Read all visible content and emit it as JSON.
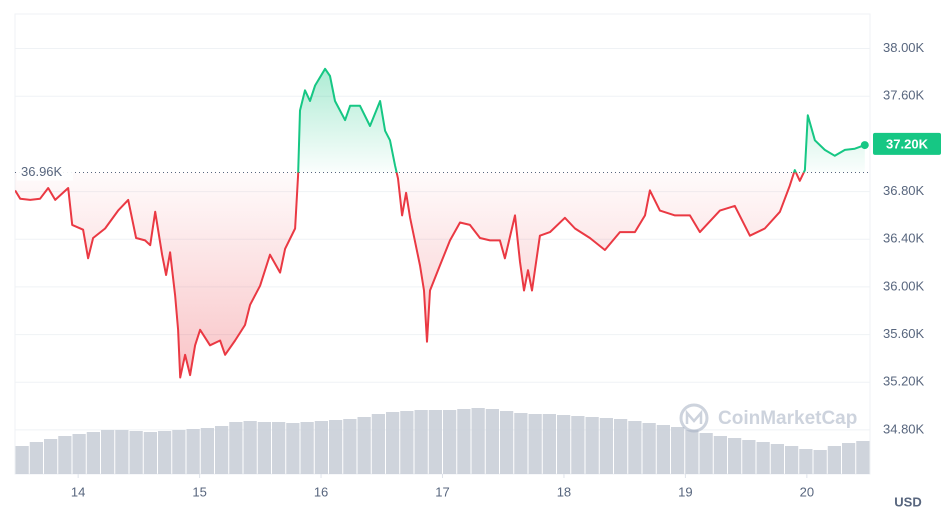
{
  "chart_data": {
    "type": "line",
    "x": [
      13.481,
      13.523,
      13.605,
      13.687,
      13.753,
      13.811,
      13.918,
      13.951,
      14.041,
      14.082,
      14.123,
      14.222,
      14.329,
      14.412,
      14.477,
      14.551,
      14.593,
      14.634,
      14.691,
      14.724,
      14.757,
      14.798,
      14.823,
      14.84,
      14.881,
      14.922,
      14.963,
      15.004,
      15.086,
      15.169,
      15.21,
      15.292,
      15.374,
      15.416,
      15.498,
      15.58,
      15.663,
      15.704,
      15.786,
      15.811,
      15.827,
      15.868,
      15.909,
      15.951,
      16.033,
      16.074,
      16.115,
      16.198,
      16.239,
      16.321,
      16.403,
      16.486,
      16.527,
      16.568,
      16.609,
      16.634,
      16.667,
      16.7,
      16.733,
      16.815,
      16.848,
      16.872,
      16.897,
      16.979,
      17.062,
      17.144,
      17.226,
      17.309,
      17.391,
      17.473,
      17.514,
      17.597,
      17.638,
      17.671,
      17.704,
      17.737,
      17.802,
      17.885,
      18.008,
      18.091,
      18.214,
      18.337,
      18.461,
      18.584,
      18.667,
      18.708,
      18.79,
      18.914,
      19.037,
      19.119,
      19.284,
      19.407,
      19.531,
      19.654,
      19.778,
      19.86,
      19.901,
      19.942,
      19.984,
      20.008,
      20.066,
      20.148,
      20.23,
      20.313,
      20.395,
      20.477
    ],
    "series": [
      {
        "color_up": "#16c784",
        "color_down": "#ea3943",
        "values": [
          36810,
          36740,
          36730,
          36740,
          36830,
          36730,
          36830,
          36520,
          36480,
          36240,
          36410,
          36490,
          36640,
          36730,
          36410,
          36390,
          36350,
          36630,
          36270,
          36100,
          36290,
          35930,
          35640,
          35240,
          35430,
          35260,
          35510,
          35640,
          35510,
          35550,
          35430,
          35550,
          35680,
          35850,
          36010,
          36270,
          36120,
          36320,
          36490,
          36940,
          37480,
          37650,
          37560,
          37690,
          37830,
          37770,
          37560,
          37400,
          37520,
          37520,
          37350,
          37560,
          37310,
          37230,
          37020,
          36910,
          36600,
          36790,
          36580,
          36180,
          35970,
          35540,
          35970,
          36180,
          36390,
          36540,
          36520,
          36410,
          36390,
          36390,
          36240,
          36600,
          36210,
          35970,
          36140,
          35970,
          36430,
          36460,
          36580,
          36490,
          36410,
          36310,
          36460,
          36460,
          36600,
          36810,
          36640,
          36600,
          36600,
          36460,
          36640,
          36680,
          36430,
          36490,
          36630,
          36850,
          36980,
          36890,
          36980,
          37440,
          37230,
          37150,
          37100,
          37150,
          37160,
          37190
        ]
      }
    ],
    "baseline": {
      "value": 36960,
      "label": "36.96K"
    },
    "current_price": {
      "value": 37200,
      "label": "37.20K"
    },
    "volume": {
      "color": "#c7ccd6",
      "values": [
        28,
        32,
        35,
        38,
        40,
        42,
        44,
        44,
        43,
        42,
        43,
        44,
        45,
        46,
        48,
        52,
        53,
        52,
        52,
        51,
        52,
        53,
        54,
        55,
        57,
        60,
        62,
        63,
        64,
        64,
        64,
        65,
        66,
        65,
        63,
        61,
        60,
        60,
        59,
        58,
        57,
        56,
        55,
        53,
        51,
        49,
        47,
        44,
        41,
        38,
        36,
        34,
        32,
        30,
        28,
        25,
        24,
        28,
        31,
        33
      ]
    },
    "xlim": [
      13.48,
      20.52
    ],
    "xticks": [
      14,
      15,
      16,
      17,
      18,
      19,
      20
    ],
    "ylim": [
      34430,
      38290
    ],
    "yticks": [
      {
        "value": 34800,
        "label": "34.80K"
      },
      {
        "value": 35200,
        "label": "35.20K"
      },
      {
        "value": 35600,
        "label": "35.60K"
      },
      {
        "value": 36000,
        "label": "36.00K"
      },
      {
        "value": 36400,
        "label": "36.40K"
      },
      {
        "value": 36800,
        "label": "36.80K"
      },
      {
        "value": 37600,
        "label": "37.60K"
      },
      {
        "value": 38000,
        "label": "38.00K"
      }
    ],
    "grid": true,
    "currency": "USD",
    "watermark": "CoinMarketCap"
  }
}
